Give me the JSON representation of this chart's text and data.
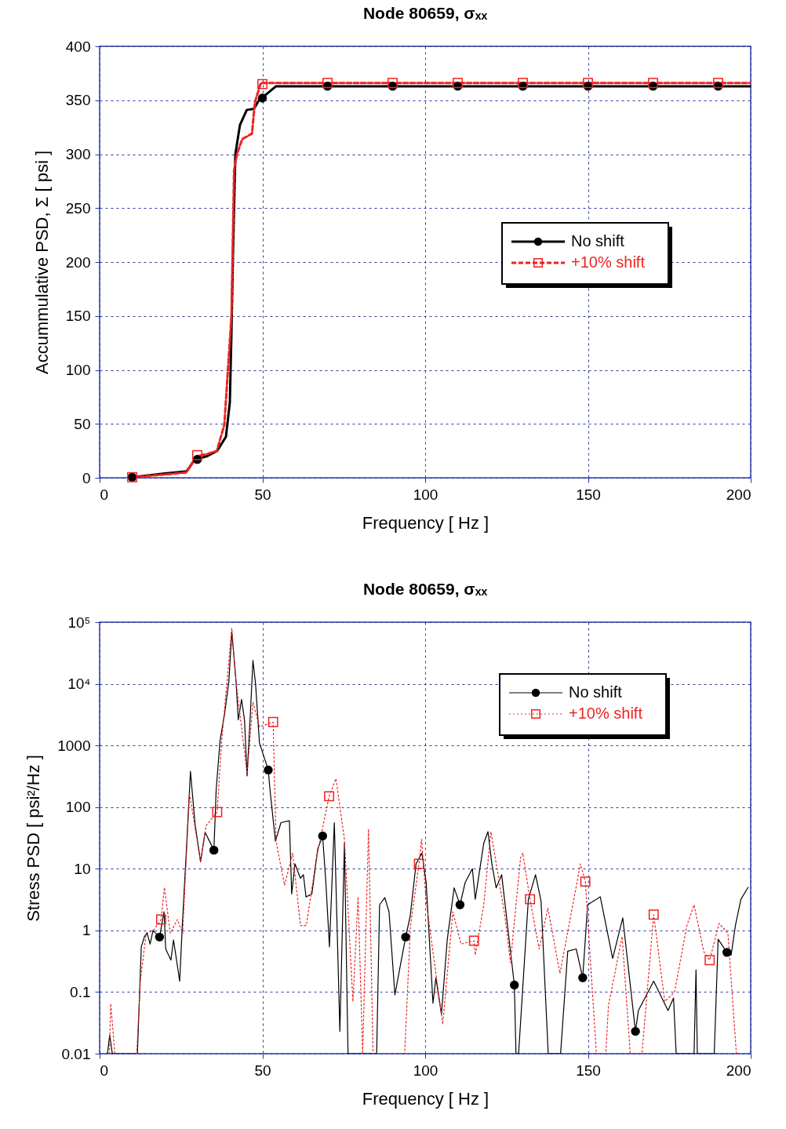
{
  "chart_data": [
    {
      "type": "line",
      "title": "Node 80659, σₓₓ",
      "xlabel": "Frequency  [ Hz ]",
      "ylabel": "Accummulative PSD, Σ  [ psi ]",
      "xlim": [
        0,
        200
      ],
      "xticks": [
        0,
        50,
        100,
        150,
        200
      ],
      "ylim": [
        0,
        400
      ],
      "yticks": [
        0,
        50,
        100,
        150,
        200,
        250,
        300,
        350,
        400
      ],
      "grid": true,
      "legend": "right",
      "series": [
        {
          "name": "No shift",
          "color": "#000000",
          "line_style": "solid",
          "x": [
            10,
            20,
            26.7,
            29.3,
            33,
            36.1,
            38.8,
            40,
            40.5,
            41,
            41.7,
            43.1,
            45.2,
            47.4,
            49.5,
            51,
            54.2,
            200
          ],
          "values": [
            0.5,
            4,
            6,
            17,
            20,
            25,
            38,
            70,
            135,
            212,
            300,
            327,
            341,
            342,
            353,
            355,
            363,
            363
          ]
        },
        {
          "name": "+10% shift",
          "color": "#ee2222",
          "line_style": "dashed",
          "x": [
            10,
            20,
            26.7,
            29.7,
            33,
            36,
            38.3,
            40.5,
            41.3,
            42.2,
            43.8,
            46.8,
            47.7,
            49.5,
            53.5,
            200
          ],
          "values": [
            0.5,
            3,
            5,
            20,
            22,
            25,
            49,
            150,
            285,
            300,
            314,
            319,
            348,
            366,
            366,
            366
          ]
        },
        {
          "type": "scatter",
          "color": "#000000",
          "marker": "circle",
          "x": [
            10,
            30,
            50,
            70,
            90,
            110,
            130,
            150,
            170,
            190
          ],
          "values": [
            0.5,
            17,
            352,
            363,
            363,
            363,
            363,
            363,
            363,
            363
          ]
        },
        {
          "type": "scatter",
          "color": "#ee2222",
          "marker": "square",
          "x": [
            10,
            30,
            50,
            70,
            90,
            110,
            130,
            150,
            170,
            190
          ],
          "values": [
            0.5,
            21,
            365,
            366,
            366,
            366,
            366,
            366,
            366,
            366
          ]
        }
      ]
    },
    {
      "type": "line",
      "title": "Node 80659, σₓₓ",
      "xlabel": "Frequency  [ Hz ]",
      "ylabel": "Stress PSD  [ psi²/Hz ]",
      "xlim": [
        0,
        200
      ],
      "xticks": [
        0,
        50,
        100,
        150,
        200
      ],
      "ylim": [
        0.01,
        100000
      ],
      "yticks": [
        0.01,
        0.1,
        1,
        10,
        100,
        1000,
        {
          "value": 10000,
          "label": "10⁴"
        },
        {
          "value": 100000,
          "label": "10⁵"
        }
      ],
      "log": true,
      "grid": true,
      "legend": "top right",
      "series": [
        {
          "name": "No shift",
          "color": "#000000",
          "line_style": "solid",
          "x": [
            2.4,
            3.1,
            3.9,
            11.6,
            12.8,
            13.8,
            14.6,
            15.5,
            16.4,
            18.4,
            19.8,
            20.3,
            21.9,
            22.7,
            24.6,
            25.4,
            26.8,
            27.9,
            29.3,
            31,
            32.4,
            35.1,
            35.8,
            37,
            38.4,
            39.7,
            40.6,
            41.9,
            42.6,
            43.6,
            44.5,
            45.3,
            46.3,
            47.1,
            47.9,
            49.1,
            51.8,
            52.3,
            54,
            55.7,
            58.3,
            59,
            60,
            61.7,
            62.6,
            63.4,
            65.2,
            67,
            68.5,
            69.5,
            70.6,
            72.1,
            73.8,
            75.2,
            76.3,
            85.1,
            86,
            87.6,
            88.9,
            90.7,
            94,
            95.4,
            97.2,
            99,
            100.3,
            102.4,
            103.3,
            105,
            106.8,
            108.9,
            110.7,
            112.3,
            114.5,
            115.4,
            118,
            119.3,
            120.5,
            121.8,
            123.5,
            127.4,
            127.9,
            128.7,
            131.7,
            133.9,
            135.6,
            137.8,
            141.6,
            143.8,
            146.4,
            148.4,
            149.9,
            153.8,
            157.6,
            160.7,
            164.6,
            165.5,
            170.2,
            174.6,
            176.3,
            177.1,
            182.6,
            183.2,
            183.6,
            188.8,
            190,
            192.7,
            194,
            195.3,
            197,
            199.2
          ],
          "values": [
            0.01,
            0.02,
            0.01,
            0.01,
            0.54,
            0.8,
            0.9,
            0.6,
            1,
            0.78,
            2,
            0.5,
            0.33,
            0.7,
            0.15,
            1.2,
            28,
            380,
            54,
            13,
            39,
            20,
            190,
            1200,
            3300,
            11000,
            69000,
            11000,
            2600,
            5600,
            2600,
            320,
            3200,
            24000,
            10000,
            1100,
            400,
            200,
            28,
            56,
            60,
            3.9,
            12,
            7,
            8,
            3.5,
            3.9,
            21,
            34,
            6,
            0.54,
            56,
            0.023,
            26,
            0.01,
            0.01,
            2.6,
            3.4,
            2,
            0.09,
            0.78,
            1.7,
            12,
            18,
            6,
            0.066,
            0.17,
            0.044,
            0.72,
            4.9,
            2.6,
            6,
            10,
            3.2,
            26,
            40,
            12,
            4.9,
            8,
            0.13,
            0.01,
            0.01,
            3.2,
            8,
            3,
            0.01,
            0.01,
            0.46,
            0.5,
            0.17,
            2.6,
            3.5,
            0.35,
            1.6,
            0.023,
            0.05,
            0.15,
            0.05,
            0.08,
            0.01,
            0.01,
            0.23,
            0.01,
            0.01,
            0.72,
            0.44,
            0.4,
            1.2,
            3.2,
            5
          ]
        },
        {
          "name": "+10% shift",
          "color": "#ee2222",
          "line_style": "dotted",
          "x": [
            3,
            3.4,
            4.7,
            11.4,
            12.5,
            14.3,
            16.5,
            18.9,
            19.9,
            21.7,
            23.9,
            25.5,
            27.6,
            31,
            32.7,
            36.1,
            37.5,
            40.6,
            41.9,
            45.3,
            47.1,
            49.1,
            53.3,
            53.6,
            54.2,
            56.8,
            59.3,
            61.7,
            63.5,
            66.5,
            70.5,
            72.6,
            75.2,
            77.8,
            79.4,
            80.8,
            82.6,
            84,
            93.7,
            95.5,
            98.1,
            98.9,
            100.3,
            105.4,
            108.5,
            111,
            115,
            115.4,
            118,
            120.2,
            124.5,
            126.2,
            129.3,
            130,
            132.2,
            135,
            137.7,
            141.4,
            147.7,
            149.2,
            152.6,
            155.5,
            156.3,
            160.5,
            163,
            166.6,
            170.2,
            173.6,
            176.6,
            180.4,
            182.6,
            185.6,
            187.4,
            190.3,
            193,
            195.6
          ],
          "values": [
            0.01,
            0.065,
            0.01,
            0.01,
            0.15,
            0.9,
            1,
            1.5,
            5,
            0.9,
            1.5,
            0.9,
            170,
            13,
            50,
            83,
            1200,
            80000,
            11000,
            350,
            5000,
            2000,
            2400,
            500,
            28,
            5.4,
            18,
            1.2,
            1.2,
            14,
            150,
            290,
            30,
            0.07,
            3.5,
            0.01,
            44,
            0.01,
            0.01,
            1.2,
            12,
            30,
            3,
            0.03,
            2,
            0.6,
            0.68,
            0.4,
            2.6,
            40,
            1.7,
            0.3,
            15,
            18,
            3.2,
            0.5,
            2.3,
            0.2,
            12,
            6.2,
            0.01,
            0.01,
            0.06,
            0.8,
            0.01,
            0.01,
            1.8,
            0.07,
            0.1,
            1.2,
            2.6,
            0.45,
            0.33,
            1.3,
            0.9,
            0.01
          ]
        },
        {
          "type": "scatter",
          "color": "#000000",
          "marker": "circle",
          "x": [
            18.4,
            35.1,
            51.8,
            68.5,
            94,
            110.7,
            127.4,
            148.4,
            164.6,
            192.7
          ],
          "values": [
            0.78,
            20,
            400,
            34,
            0.78,
            2.6,
            0.13,
            0.17,
            0.023,
            0.44
          ]
        },
        {
          "type": "scatter",
          "color": "#ee2222",
          "marker": "square",
          "x": [
            18.9,
            36.1,
            53.3,
            70.5,
            98.1,
            115,
            132.2,
            149.2,
            170.2,
            187.4
          ],
          "values": [
            1.5,
            83,
            2400,
            150,
            12,
            0.68,
            3.2,
            6.2,
            1.8,
            0.33
          ]
        }
      ]
    }
  ]
}
